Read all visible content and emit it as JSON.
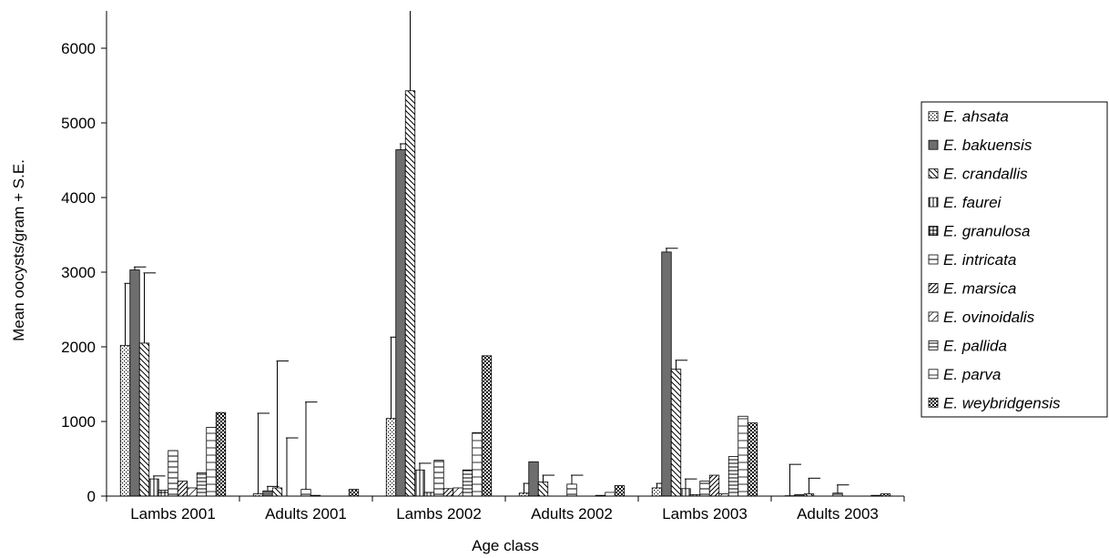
{
  "chart_data": {
    "type": "bar",
    "xlabel": "Age class",
    "ylabel": "Mean oocysts/gram + S.E.",
    "ylim": [
      0,
      6500
    ],
    "yticks": [
      0,
      1000,
      2000,
      3000,
      4000,
      5000,
      6000
    ],
    "categories": [
      "Lambs 2001",
      "Adults 2001",
      "Lambs 2002",
      "Adults 2002",
      "Lambs 2003",
      "Adults 2003"
    ],
    "legend_position": "right",
    "grid": false,
    "series": [
      {
        "name": "E. ahsata",
        "pattern": "dots",
        "values": [
          2020,
          30,
          1040,
          40,
          110,
          5
        ],
        "errors": [
          830,
          1080,
          1090,
          130,
          60,
          420
        ]
      },
      {
        "name": "E. bakuensis",
        "pattern": "solid",
        "values": [
          3030,
          70,
          4640,
          460,
          3270,
          20
        ],
        "errors": [
          40,
          60,
          80,
          0,
          50,
          0
        ]
      },
      {
        "name": "E. crandallis",
        "pattern": "diag-back",
        "values": [
          2050,
          110,
          5430,
          190,
          1700,
          30
        ],
        "errors": [
          940,
          1700,
          1120,
          90,
          120,
          210
        ]
      },
      {
        "name": "E. faurei",
        "pattern": "vlines",
        "values": [
          230,
          0,
          350,
          0,
          100,
          0
        ],
        "errors": [
          40,
          780,
          90,
          0,
          130,
          0
        ]
      },
      {
        "name": "E. granulosa",
        "pattern": "grid",
        "values": [
          80,
          0,
          50,
          0,
          20,
          0
        ],
        "errors": [
          0,
          0,
          0,
          0,
          0,
          0
        ]
      },
      {
        "name": "E. intricata",
        "pattern": "box",
        "values": [
          610,
          90,
          480,
          160,
          200,
          40
        ],
        "errors": [
          0,
          1170,
          0,
          120,
          0,
          110
        ]
      },
      {
        "name": "E. marsica",
        "pattern": "diag-fwd",
        "values": [
          200,
          10,
          100,
          0,
          280,
          0
        ],
        "errors": [
          0,
          0,
          0,
          0,
          0,
          0
        ]
      },
      {
        "name": "E. ovinoidalis",
        "pattern": "fine-diag",
        "values": [
          110,
          0,
          110,
          0,
          30,
          0
        ],
        "errors": [
          0,
          0,
          0,
          0,
          0,
          0
        ]
      },
      {
        "name": "E. pallida",
        "pattern": "hlines",
        "values": [
          310,
          0,
          350,
          10,
          530,
          0
        ],
        "errors": [
          0,
          0,
          0,
          0,
          0,
          0
        ]
      },
      {
        "name": "E. parva",
        "pattern": "hline-mid",
        "values": [
          920,
          0,
          850,
          50,
          1070,
          10
        ],
        "errors": [
          0,
          0,
          0,
          0,
          0,
          0
        ]
      },
      {
        "name": "E. weybridgensis",
        "pattern": "checker",
        "values": [
          1120,
          90,
          1880,
          140,
          980,
          30
        ],
        "errors": [
          0,
          0,
          0,
          0,
          0,
          0
        ]
      }
    ]
  }
}
